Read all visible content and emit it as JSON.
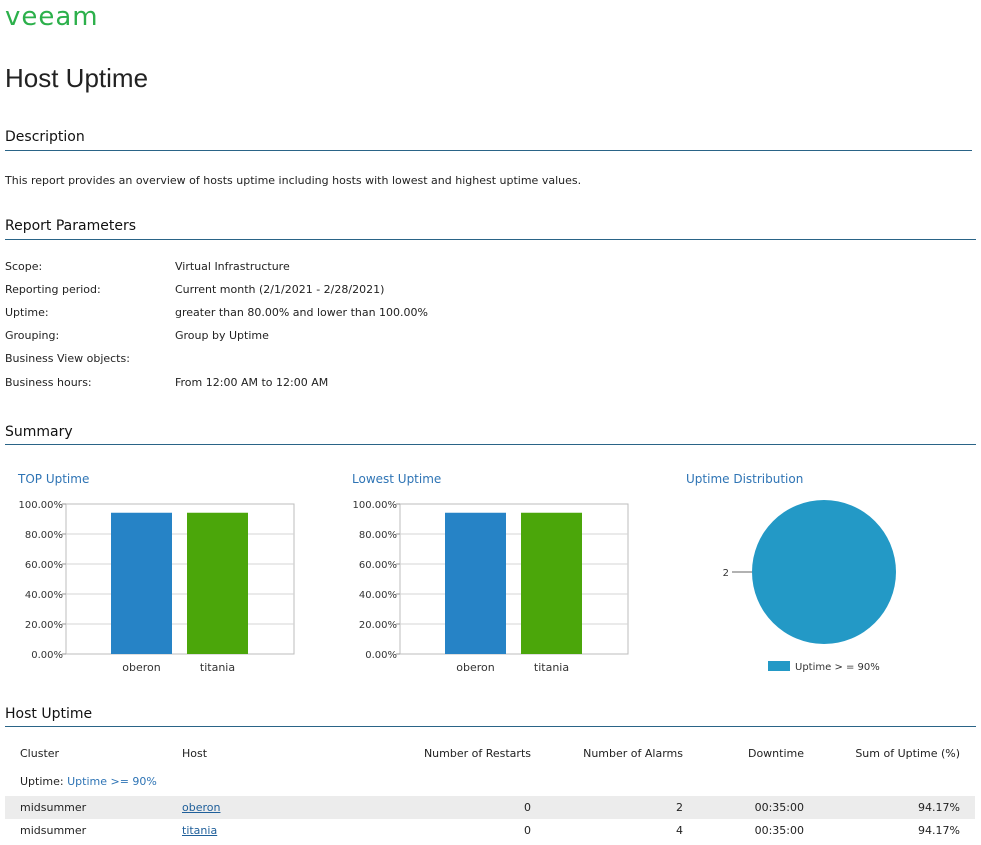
{
  "brand": {
    "logo_text": "veeam",
    "color": "#2cb04b"
  },
  "report": {
    "title": "Host Uptime"
  },
  "description": {
    "heading": "Description",
    "text": "This report provides an overview of hosts uptime including hosts with lowest and highest uptime values."
  },
  "parameters": {
    "heading": "Report Parameters",
    "rows": [
      {
        "label": "Scope:",
        "value": "Virtual Infrastructure"
      },
      {
        "label": "Reporting period:",
        "value": "Current month (2/1/2021 - 2/28/2021)"
      },
      {
        "label": "Uptime:",
        "value": "greater than 80.00% and lower than 100.00%"
      },
      {
        "label": "Grouping:",
        "value": "Group by Uptime"
      },
      {
        "label": "Business View objects:",
        "value": ""
      },
      {
        "label": "Business hours:",
        "value": "From 12:00 AM to 12:00 AM"
      }
    ]
  },
  "summary": {
    "heading": "Summary"
  },
  "chart_data": [
    {
      "type": "bar",
      "title": "TOP Uptime",
      "categories": [
        "oberon",
        "titania"
      ],
      "values": [
        94.17,
        94.17
      ],
      "colors": [
        "#2683c6",
        "#4ba60a"
      ],
      "ylim": [
        0,
        100
      ],
      "yticks": [
        "0.00%",
        "20.00%",
        "40.00%",
        "60.00%",
        "80.00%",
        "100.00%"
      ]
    },
    {
      "type": "bar",
      "title": "Lowest Uptime",
      "categories": [
        "oberon",
        "titania"
      ],
      "values": [
        94.17,
        94.17
      ],
      "colors": [
        "#2683c6",
        "#4ba60a"
      ],
      "ylim": [
        0,
        100
      ],
      "yticks": [
        "0.00%",
        "20.00%",
        "40.00%",
        "60.00%",
        "80.00%",
        "100.00%"
      ]
    },
    {
      "type": "pie",
      "title": "Uptime Distribution",
      "slices": [
        {
          "label": "Uptime > = 90%",
          "value": 2,
          "color": "#2399c6"
        }
      ],
      "data_label": "2",
      "legend": "bottom"
    }
  ],
  "host_uptime": {
    "heading": "Host Uptime",
    "columns": [
      "Cluster",
      "Host",
      "Number of Restarts",
      "Number of Alarms",
      "Downtime",
      "Sum of Uptime (%)"
    ],
    "group_label": "Uptime:",
    "group_value": "Uptime >= 90%",
    "rows": [
      {
        "cluster": "midsummer",
        "host": "oberon",
        "restarts": "0",
        "alarms": "2",
        "downtime": "00:35:00",
        "uptime": "94.17%"
      },
      {
        "cluster": "midsummer",
        "host": "titania",
        "restarts": "0",
        "alarms": "4",
        "downtime": "00:35:00",
        "uptime": "94.17%"
      }
    ]
  }
}
